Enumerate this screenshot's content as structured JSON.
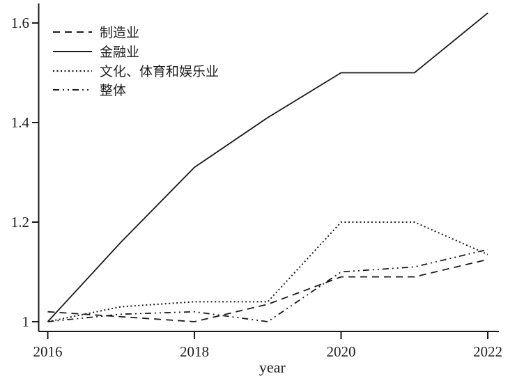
{
  "figure": {
    "background": "#ffffff",
    "line_color": "#1a1a1a",
    "text_color": "#1f1f1f"
  },
  "chart_data": {
    "type": "line",
    "title": "",
    "xlabel": "year",
    "ylabel": "",
    "x": [
      2016,
      2017,
      2018,
      2019,
      2020,
      2021,
      2022
    ],
    "x_ticks": [
      {
        "label": "2016",
        "value": 2016
      },
      {
        "label": "2018",
        "value": 2018
      },
      {
        "label": "2020",
        "value": 2020
      },
      {
        "label": "2022",
        "value": 2022
      }
    ],
    "y_ticks": [
      {
        "label": "1",
        "value": 1.0
      },
      {
        "label": "1.2",
        "value": 1.2
      },
      {
        "label": "1.4",
        "value": 1.4
      },
      {
        "label": "1.6",
        "value": 1.6
      }
    ],
    "xlim": [
      2016,
      2022
    ],
    "ylim": [
      1.0,
      1.62
    ],
    "grid": false,
    "legend_position": "top-left",
    "series": [
      {
        "key": "manufacturing",
        "name": "制造业",
        "style": "dashed",
        "values": [
          1.02,
          1.01,
          1.0,
          1.035,
          1.09,
          1.09,
          1.125
        ]
      },
      {
        "key": "finance",
        "name": "金融业",
        "style": "solid",
        "values": [
          1.0,
          1.16,
          1.31,
          1.41,
          1.5,
          1.5,
          1.62
        ]
      },
      {
        "key": "culture-sports-entertainment",
        "name": "文化、体育和娱乐业",
        "style": "dotted",
        "values": [
          1.0,
          1.03,
          1.04,
          1.04,
          1.2,
          1.2,
          1.135
        ]
      },
      {
        "key": "overall",
        "name": "整体",
        "style": "dash-dot",
        "values": [
          1.0,
          1.015,
          1.02,
          1.0,
          1.1,
          1.11,
          1.145
        ]
      }
    ]
  }
}
